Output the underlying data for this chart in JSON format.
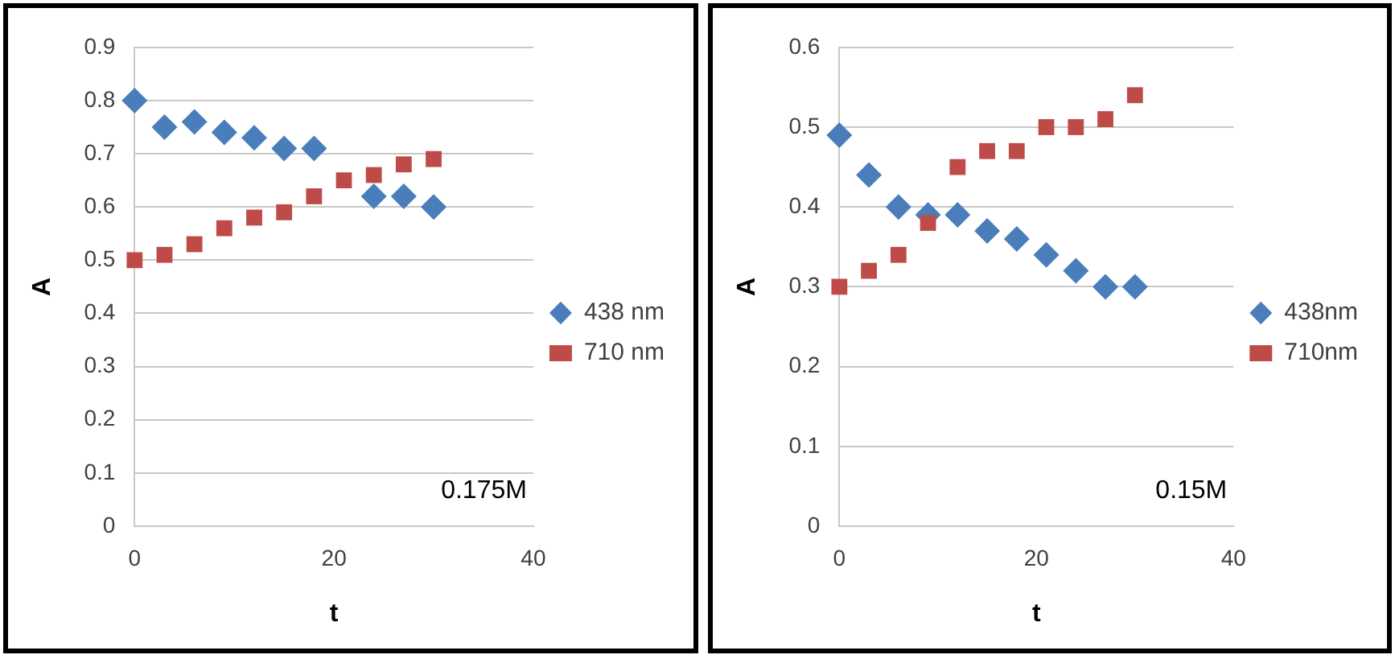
{
  "chart_data": [
    {
      "type": "scatter",
      "xlabel": "t",
      "ylabel": "A",
      "x": [
        0,
        3,
        6,
        9,
        12,
        15,
        18,
        21,
        24,
        27,
        30
      ],
      "xlim": [
        0,
        40
      ],
      "xticks": [
        0,
        20,
        40
      ],
      "ylim": [
        0,
        0.9
      ],
      "yticks": [
        0,
        0.1,
        0.2,
        0.3,
        0.4,
        0.5,
        0.6,
        0.7,
        0.8,
        0.9
      ],
      "grid": "y",
      "legend": "right",
      "annotations": [
        "0.175M"
      ],
      "series": [
        {
          "name": "438 nm",
          "color": "#4a7ebb",
          "marker": "diamond",
          "values": [
            0.8,
            0.75,
            0.76,
            0.74,
            0.73,
            0.71,
            0.71,
            null,
            0.62,
            0.62,
            0.6
          ]
        },
        {
          "name": "710 nm",
          "color": "#be4b48",
          "marker": "square",
          "values": [
            0.5,
            0.51,
            0.53,
            0.56,
            0.58,
            0.59,
            0.62,
            0.65,
            0.66,
            0.68,
            0.69
          ]
        }
      ]
    },
    {
      "type": "scatter",
      "xlabel": "t",
      "ylabel": "A",
      "x": [
        0,
        3,
        6,
        9,
        12,
        15,
        18,
        21,
        24,
        27,
        30
      ],
      "xlim": [
        0,
        40
      ],
      "xticks": [
        0,
        20,
        40
      ],
      "ylim": [
        0,
        0.6
      ],
      "yticks": [
        0,
        0.1,
        0.2,
        0.3,
        0.4,
        0.5,
        0.6
      ],
      "grid": "y",
      "legend": "right",
      "annotations": [
        "0.15M"
      ],
      "series": [
        {
          "name": "438nm",
          "color": "#4a7ebb",
          "marker": "diamond",
          "values": [
            0.49,
            0.44,
            0.4,
            0.39,
            0.39,
            0.37,
            0.36,
            0.34,
            0.32,
            0.3,
            0.3
          ]
        },
        {
          "name": "710nm",
          "color": "#be4b48",
          "marker": "square",
          "values": [
            0.3,
            0.32,
            0.34,
            0.38,
            0.45,
            0.47,
            0.47,
            0.5,
            0.5,
            0.51,
            0.54
          ]
        }
      ]
    }
  ]
}
